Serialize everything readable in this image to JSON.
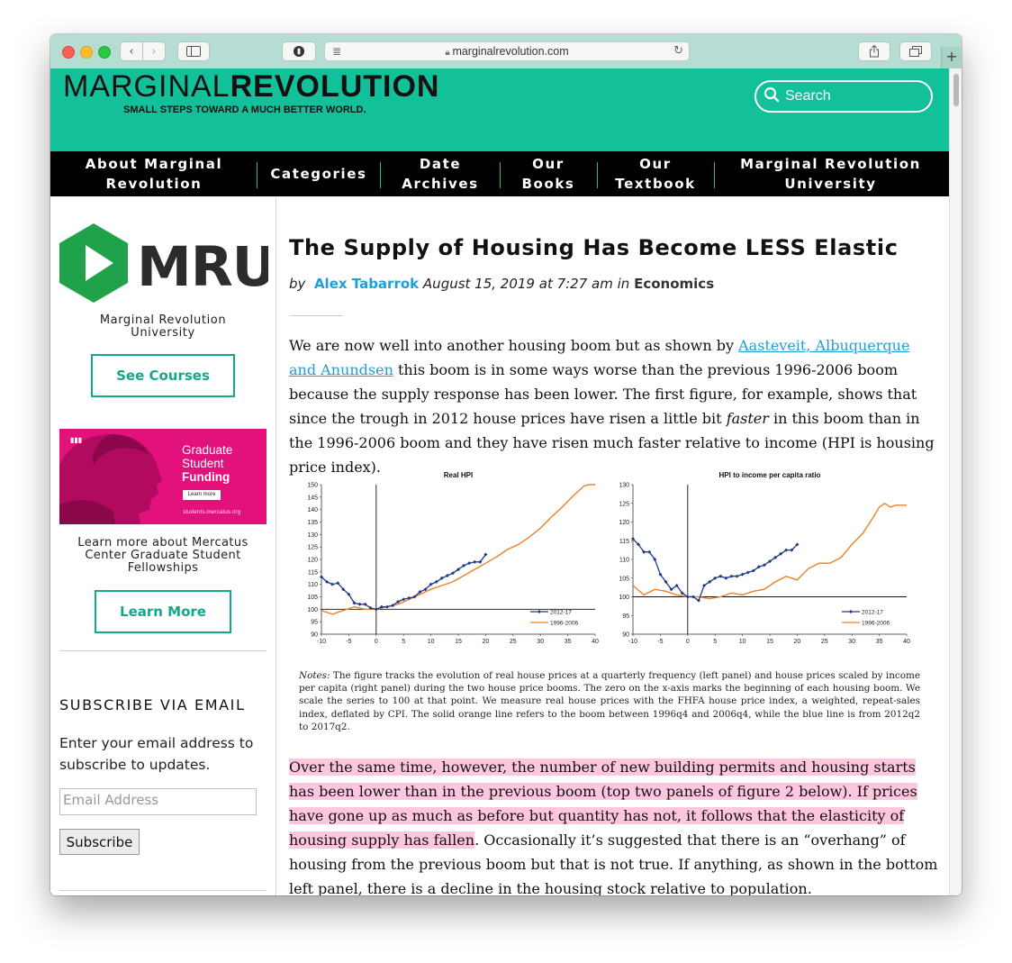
{
  "browser": {
    "url": "marginalrevolution.com",
    "new_tab": "+"
  },
  "header": {
    "logo_part1": "MARGINAL",
    "logo_part2": "REVOLUTION",
    "tagline": "SMALL STEPS TOWARD A MUCH BETTER WORLD.",
    "search_label": "Search"
  },
  "nav": {
    "items": [
      {
        "line1": "About Marginal",
        "line2": "Revolution"
      },
      {
        "line1": "Categories",
        "line2": ""
      },
      {
        "line1": "Date",
        "line2": "Archives"
      },
      {
        "line1": "Our",
        "line2": "Books"
      },
      {
        "line1": "Our",
        "line2": "Textbook"
      },
      {
        "line1": "Marginal Revolution",
        "line2": "University"
      }
    ]
  },
  "sidebar": {
    "mru_logo_text": "MRU",
    "mru_line1": "Marginal Revolution",
    "mru_line2": "University",
    "see_courses": "See Courses",
    "promo": {
      "line1": "Graduate",
      "line2": "Student",
      "line3": "Funding",
      "learn_more_small": "Learn more",
      "url": "students.mercatus.org"
    },
    "promo_text1": "Learn more about Mercatus",
    "promo_text2": "Center Graduate Student",
    "promo_text3": "Fellowships",
    "learn_more": "Learn More",
    "subscribe_title": "SUBSCRIBE VIA EMAIL",
    "subscribe_text": "Enter your email address to subscribe to updates.",
    "email_placeholder": "Email Address",
    "subscribe_button": "Subscribe"
  },
  "post": {
    "title": "The Supply of Housing Has Become LESS Elastic",
    "by": "by",
    "author": "Alex Tabarrok",
    "date": "August 15, 2019 at 7:27 am",
    "in": "in",
    "category": "Economics",
    "p1_before": "We are now well into another housing boom but as shown by ",
    "p1_link": "Aasteveit, Albuquerque and Anundsen",
    "p1_mid": " this boom is in some ways worse than the previous 1996-2006 boom because the supply response has been lower. The first figure, for example, shows that since the trough in 2012 house prices have risen a little bit ",
    "p1_em": "faster",
    "p1_after": " in this boom than in the 1996-2006 boom and they have risen much faster relative to income (HPI is housing price index).",
    "notes_label": "Notes:",
    "notes_text": " The figure tracks the evolution of real house prices at a quarterly frequency (left panel) and house prices scaled by income per capita (right panel) during the two house price booms. The zero on the x-axis marks the beginning of each housing boom. We scale the series to 100 at that point. We measure real house prices with the FHFA house price index, a weighted, repeat-sales index, deflated by CPI. The solid orange line refers to the boom between 1996q4 and 2006q4, while the blue line is from 2012q2 to 2017q2.",
    "p2_highlight": "Over the same time, however, the number of new building permits and housing starts has been lower than in the previous boom (top two panels of figure 2 below). If prices have gone up as much as before but quantity has not, it follows that the elasticity of housing supply has fallen",
    "p2_rest": ". Occasionally it’s suggested that there is an “overhang” of housing from the previous boom but that is not true. If anything, as shown in the bottom left panel, there is a decline in the housing stock relative to population."
  },
  "chart_data": [
    {
      "type": "line",
      "title": "Real HPI",
      "xlim": [
        -10,
        40
      ],
      "ylim": [
        90,
        150
      ],
      "x_ticks": [
        -10,
        -5,
        0,
        5,
        10,
        15,
        20,
        25,
        30,
        35,
        40
      ],
      "y_ticks": [
        90,
        95,
        100,
        105,
        110,
        115,
        120,
        125,
        130,
        135,
        140,
        145,
        150
      ],
      "legend_position": "bottom-right",
      "series": [
        {
          "name": "2012-17",
          "color": "#1f3a8a",
          "marker": "diamond",
          "x": [
            -10,
            -9,
            -8,
            -7,
            -6,
            -5,
            -4,
            -3,
            -2,
            -1,
            0,
            1,
            2,
            3,
            4,
            5,
            6,
            7,
            8,
            9,
            10,
            11,
            12,
            13,
            14,
            15,
            16,
            17,
            18,
            19,
            20
          ],
          "y": [
            113,
            111,
            110,
            110.5,
            108,
            106,
            102.5,
            102,
            102,
            100.5,
            100,
            101,
            101,
            101.5,
            103,
            104,
            104.5,
            105,
            107,
            108,
            110,
            111,
            112.5,
            113.5,
            114.5,
            116,
            117.5,
            118.5,
            119,
            119,
            122
          ]
        },
        {
          "name": "1996-2006",
          "color": "#f07f25",
          "x": [
            -10,
            -8,
            -6,
            -4,
            -2,
            0,
            2,
            4,
            6,
            8,
            10,
            12,
            14,
            16,
            18,
            20,
            22,
            24,
            26,
            28,
            30,
            32,
            34,
            36,
            38,
            39,
            40
          ],
          "y": [
            99.5,
            98,
            99.5,
            101,
            100,
            100,
            101,
            102,
            104,
            106,
            108,
            109.5,
            111,
            113.5,
            116,
            118.5,
            121,
            124,
            126,
            129,
            132.5,
            137,
            141,
            145.5,
            149.5,
            150,
            150
          ]
        }
      ]
    },
    {
      "type": "line",
      "title": "HPI to income per capita ratio",
      "xlim": [
        -10,
        40
      ],
      "ylim": [
        90,
        130
      ],
      "x_ticks": [
        -10,
        -5,
        0,
        5,
        10,
        15,
        20,
        25,
        30,
        35,
        40
      ],
      "y_ticks": [
        90,
        95,
        100,
        105,
        110,
        115,
        120,
        125,
        130
      ],
      "legend_position": "bottom-right",
      "series": [
        {
          "name": "2012-17",
          "color": "#1f3a8a",
          "marker": "diamond",
          "x": [
            -10,
            -9,
            -8,
            -7,
            -6,
            -5,
            -4,
            -3,
            -2,
            -1,
            0,
            1,
            2,
            3,
            4,
            5,
            6,
            7,
            8,
            9,
            10,
            11,
            12,
            13,
            14,
            15,
            16,
            17,
            18,
            19,
            20
          ],
          "y": [
            115.5,
            114,
            112,
            112,
            110,
            106,
            104,
            102,
            103,
            101,
            100,
            100,
            99,
            103,
            104,
            105,
            105.5,
            105,
            105.5,
            105.5,
            106,
            106.5,
            107,
            108,
            108.5,
            109.5,
            110.5,
            111.5,
            112.5,
            112.5,
            114
          ]
        },
        {
          "name": "1996-2006",
          "color": "#f07f25",
          "x": [
            -10,
            -8,
            -6,
            -4,
            -2,
            0,
            2,
            4,
            6,
            8,
            10,
            12,
            14,
            16,
            18,
            20,
            22,
            24,
            26,
            28,
            30,
            32,
            34,
            35,
            36,
            37,
            38,
            40
          ],
          "y": [
            103,
            100.5,
            102,
            101.5,
            100.5,
            100,
            100,
            99.5,
            100,
            101,
            100.5,
            101.5,
            102,
            104,
            105.5,
            104.5,
            107.5,
            109,
            109,
            110.5,
            114,
            117,
            121.5,
            124,
            125,
            124,
            124.5,
            124.5
          ]
        }
      ]
    }
  ]
}
